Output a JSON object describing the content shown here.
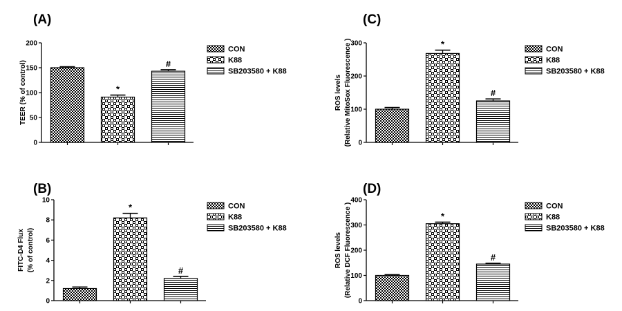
{
  "legend": [
    {
      "label": "CON",
      "pattern": "pat-con"
    },
    {
      "label": "K88",
      "pattern": "pat-k88"
    },
    {
      "label": "SB203580 + K88",
      "pattern": "pat-sb"
    }
  ],
  "colors": {
    "ink": "#000000",
    "background": "#ffffff"
  },
  "chart_data": [
    {
      "panel": "(A)",
      "type": "bar",
      "categories": [
        "CON",
        "K88",
        "SB203580 + K88"
      ],
      "values": [
        150,
        91,
        143
      ],
      "errors": [
        2,
        4,
        3
      ],
      "annotations": [
        "",
        "*",
        "#"
      ],
      "ylabel": "TEER (% of control)",
      "ylabel2": "",
      "ylim": [
        0,
        200
      ],
      "yticks": [
        0,
        50,
        100,
        150,
        200
      ],
      "grid": false,
      "legend_position": "right"
    },
    {
      "panel": "(B)",
      "type": "bar",
      "categories": [
        "CON",
        "K88",
        "SB203580 + K88"
      ],
      "values": [
        1.2,
        8.2,
        2.2
      ],
      "errors": [
        0.15,
        0.45,
        0.2
      ],
      "annotations": [
        "",
        "*",
        "#"
      ],
      "ylabel": "FITC-D4 Flux",
      "ylabel2": "(% of control)",
      "ylim": [
        0,
        10
      ],
      "yticks": [
        0,
        2,
        4,
        6,
        8,
        10
      ],
      "grid": false,
      "legend_position": "right"
    },
    {
      "panel": "(C)",
      "type": "bar",
      "categories": [
        "CON",
        "K88",
        "SB203580 + K88"
      ],
      "values": [
        100,
        268,
        125
      ],
      "errors": [
        5,
        10,
        6
      ],
      "annotations": [
        "",
        "*",
        "#"
      ],
      "ylabel": "ROS levels",
      "ylabel2": "(Relative MitoSox Fluorescence )",
      "ylim": [
        0,
        300
      ],
      "yticks": [
        0,
        100,
        200,
        300
      ],
      "grid": false,
      "legend_position": "right"
    },
    {
      "panel": "(D)",
      "type": "bar",
      "categories": [
        "CON",
        "K88",
        "SB203580 + K88"
      ],
      "values": [
        100,
        305,
        145
      ],
      "errors": [
        3,
        6,
        3
      ],
      "annotations": [
        "",
        "*",
        "#"
      ],
      "ylabel": "ROS levels",
      "ylabel2": "(Relative DCF Fluorescence )",
      "ylim": [
        0,
        400
      ],
      "yticks": [
        0,
        100,
        200,
        300,
        400
      ],
      "grid": false,
      "legend_position": "right"
    }
  ]
}
